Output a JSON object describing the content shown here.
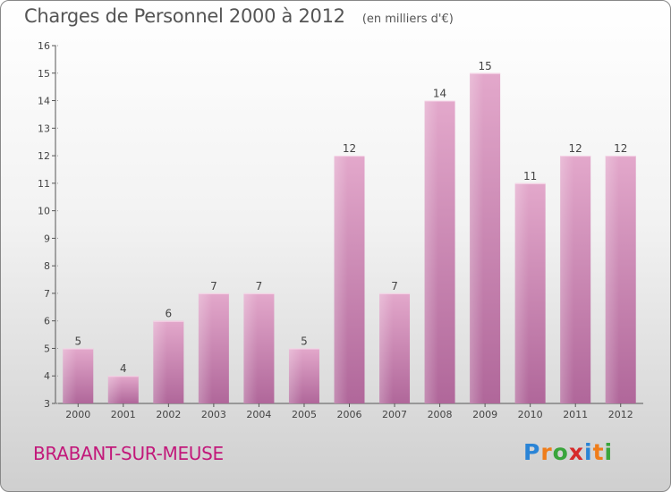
{
  "header": {
    "title": "Charges de Personnel 2000 à 2012",
    "subtitle": "(en milliers d'€)"
  },
  "footer": {
    "place": "BRABANT-SUR-MEUSE",
    "logo": "Proxiti"
  },
  "colors": {
    "bar_light": "#e3a8cb",
    "bar_dark": "#b0679a",
    "place_text": "#c2187a",
    "logo_letters": [
      "#2a84d6",
      "#ef7d1a",
      "#3aa53c",
      "#d62a2a",
      "#2a84d6",
      "#ef7d1a",
      "#3aa53c"
    ]
  },
  "chart_data": {
    "type": "bar",
    "categories": [
      "2000",
      "2001",
      "2002",
      "2003",
      "2004",
      "2005",
      "2006",
      "2007",
      "2008",
      "2009",
      "2010",
      "2011",
      "2012"
    ],
    "values": [
      5,
      4,
      6,
      7,
      7,
      5,
      12,
      7,
      14,
      15,
      11,
      12,
      12
    ],
    "title": "Charges de Personnel 2000 à 2012",
    "subtitle": "(en milliers d'€)",
    "ylim": [
      3,
      16
    ],
    "yticks": [
      3,
      4,
      5,
      6,
      7,
      8,
      9,
      10,
      11,
      12,
      13,
      14,
      15,
      16
    ],
    "grid": false,
    "legend": "none"
  }
}
